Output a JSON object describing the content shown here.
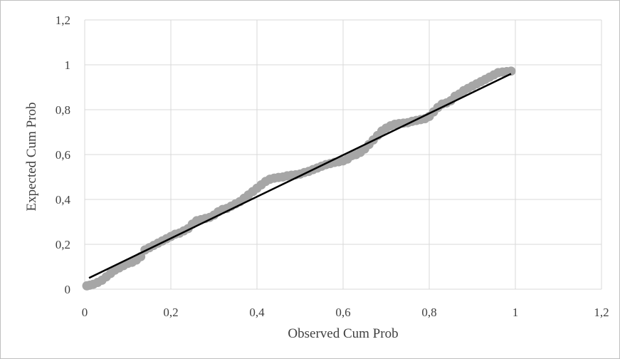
{
  "chart_data": {
    "type": "scatter",
    "xlabel": "Observed Cum Prob",
    "ylabel": "Expected Cum Prob",
    "xlim": [
      0,
      1.2
    ],
    "ylim": [
      0,
      1.2
    ],
    "x_ticks": [
      0,
      0.2,
      0.4,
      0.6,
      0.8,
      1,
      1.2
    ],
    "y_ticks": [
      0,
      0.2,
      0.4,
      0.6,
      0.8,
      1,
      1.2
    ],
    "x_tick_labels": [
      "0",
      "0,2",
      "0,4",
      "0,6",
      "0,8",
      "1",
      "1,2"
    ],
    "y_tick_labels": [
      "0",
      "0,2",
      "0,4",
      "0,6",
      "0,8",
      "1",
      "1,2"
    ],
    "grid": true,
    "legend": "none",
    "series": [
      {
        "kind": "points",
        "color": "#a6a6a6",
        "points": [
          [
            0.005,
            0.015
          ],
          [
            0.012,
            0.018
          ],
          [
            0.02,
            0.022
          ],
          [
            0.03,
            0.03
          ],
          [
            0.04,
            0.04
          ],
          [
            0.05,
            0.055
          ],
          [
            0.06,
            0.07
          ],
          [
            0.07,
            0.085
          ],
          [
            0.08,
            0.095
          ],
          [
            0.09,
            0.105
          ],
          [
            0.1,
            0.115
          ],
          [
            0.11,
            0.12
          ],
          [
            0.12,
            0.13
          ],
          [
            0.13,
            0.145
          ],
          [
            0.14,
            0.175
          ],
          [
            0.15,
            0.185
          ],
          [
            0.16,
            0.195
          ],
          [
            0.17,
            0.205
          ],
          [
            0.18,
            0.215
          ],
          [
            0.19,
            0.225
          ],
          [
            0.2,
            0.235
          ],
          [
            0.21,
            0.245
          ],
          [
            0.22,
            0.25
          ],
          [
            0.23,
            0.26
          ],
          [
            0.24,
            0.27
          ],
          [
            0.25,
            0.29
          ],
          [
            0.26,
            0.305
          ],
          [
            0.27,
            0.31
          ],
          [
            0.28,
            0.315
          ],
          [
            0.29,
            0.32
          ],
          [
            0.3,
            0.33
          ],
          [
            0.31,
            0.345
          ],
          [
            0.32,
            0.355
          ],
          [
            0.33,
            0.36
          ],
          [
            0.34,
            0.37
          ],
          [
            0.35,
            0.38
          ],
          [
            0.36,
            0.39
          ],
          [
            0.37,
            0.405
          ],
          [
            0.38,
            0.42
          ],
          [
            0.39,
            0.435
          ],
          [
            0.4,
            0.45
          ],
          [
            0.41,
            0.465
          ],
          [
            0.42,
            0.48
          ],
          [
            0.43,
            0.49
          ],
          [
            0.44,
            0.495
          ],
          [
            0.45,
            0.498
          ],
          [
            0.46,
            0.5
          ],
          [
            0.47,
            0.505
          ],
          [
            0.48,
            0.508
          ],
          [
            0.49,
            0.51
          ],
          [
            0.5,
            0.513
          ],
          [
            0.51,
            0.52
          ],
          [
            0.52,
            0.525
          ],
          [
            0.53,
            0.533
          ],
          [
            0.54,
            0.54
          ],
          [
            0.55,
            0.548
          ],
          [
            0.56,
            0.555
          ],
          [
            0.57,
            0.56
          ],
          [
            0.58,
            0.565
          ],
          [
            0.59,
            0.568
          ],
          [
            0.6,
            0.572
          ],
          [
            0.61,
            0.58
          ],
          [
            0.62,
            0.595
          ],
          [
            0.63,
            0.6
          ],
          [
            0.64,
            0.61
          ],
          [
            0.65,
            0.625
          ],
          [
            0.66,
            0.645
          ],
          [
            0.67,
            0.665
          ],
          [
            0.68,
            0.685
          ],
          [
            0.69,
            0.705
          ],
          [
            0.7,
            0.718
          ],
          [
            0.71,
            0.728
          ],
          [
            0.72,
            0.735
          ],
          [
            0.73,
            0.738
          ],
          [
            0.74,
            0.74
          ],
          [
            0.75,
            0.742
          ],
          [
            0.76,
            0.748
          ],
          [
            0.77,
            0.752
          ],
          [
            0.78,
            0.756
          ],
          [
            0.79,
            0.76
          ],
          [
            0.8,
            0.77
          ],
          [
            0.81,
            0.79
          ],
          [
            0.82,
            0.81
          ],
          [
            0.83,
            0.825
          ],
          [
            0.84,
            0.83
          ],
          [
            0.85,
            0.84
          ],
          [
            0.86,
            0.86
          ],
          [
            0.87,
            0.87
          ],
          [
            0.88,
            0.885
          ],
          [
            0.89,
            0.895
          ],
          [
            0.9,
            0.905
          ],
          [
            0.91,
            0.915
          ],
          [
            0.92,
            0.925
          ],
          [
            0.93,
            0.935
          ],
          [
            0.94,
            0.945
          ],
          [
            0.95,
            0.955
          ],
          [
            0.96,
            0.965
          ],
          [
            0.97,
            0.968
          ],
          [
            0.98,
            0.97
          ],
          [
            0.99,
            0.972
          ]
        ]
      },
      {
        "kind": "trendline",
        "color": "#000000",
        "points": [
          [
            0.01,
            0.05
          ],
          [
            0.99,
            0.96
          ]
        ]
      }
    ]
  }
}
